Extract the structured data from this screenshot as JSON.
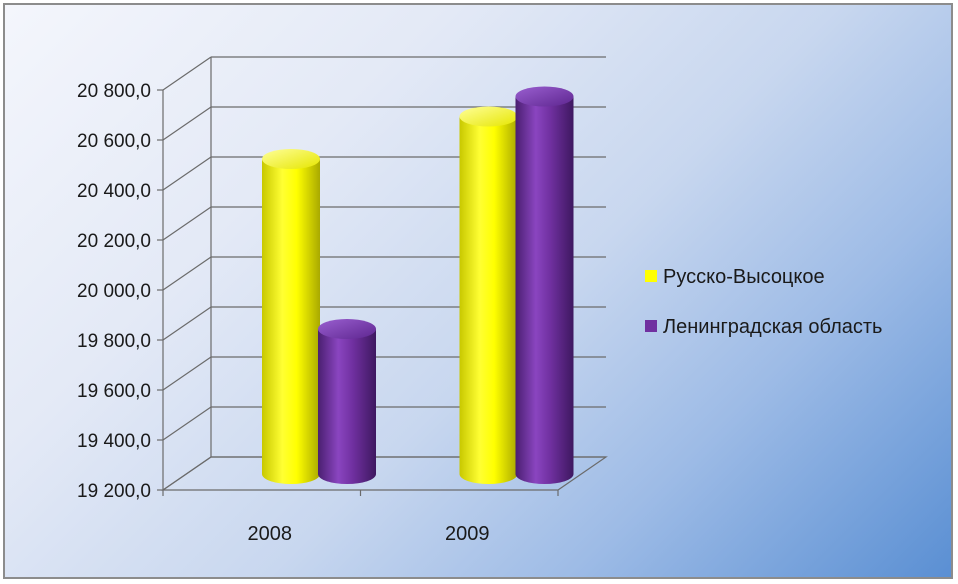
{
  "chart_data": {
    "type": "bar",
    "style": "3d-cylinder",
    "categories": [
      "2008",
      "2009"
    ],
    "series": [
      {
        "name": "Русско-Высоцкое",
        "color": "#ffff00",
        "values": [
          20460,
          20630
        ]
      },
      {
        "name": "Ленинградская область",
        "color": "#7030a0",
        "values": [
          19780,
          20710
        ]
      }
    ],
    "yticks": [
      "19 200,0",
      "19 400,0",
      "19 600,0",
      "19 800,0",
      "20 000,0",
      "20 200,0",
      "20 400,0",
      "20 600,0",
      "20 800,0"
    ],
    "ylim": [
      19200,
      20800
    ],
    "grid": true,
    "legend_position": "right"
  }
}
